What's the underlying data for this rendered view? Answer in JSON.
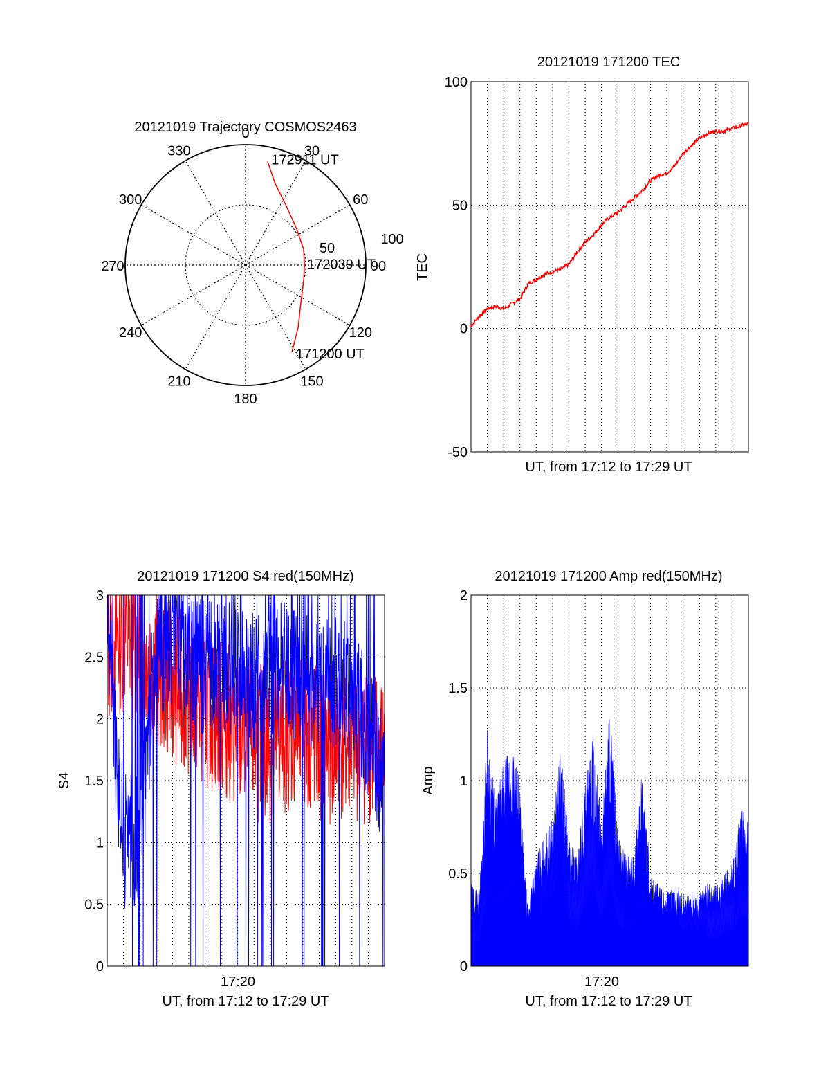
{
  "chart_data": [
    {
      "type": "polar",
      "title": "20121019 Trajectory COSMOS2463",
      "azimuth_labels": [
        "0",
        "30",
        "60",
        "90",
        "120",
        "150",
        "180",
        "210",
        "240",
        "270",
        "300",
        "330"
      ],
      "radial_labels": [
        "50",
        "100"
      ],
      "radial_range": [
        0,
        100
      ],
      "grid": true,
      "series": [
        {
          "color": "#ff0000",
          "points": [
            {
              "az": 12,
              "r": 88
            },
            {
              "az": 20,
              "r": 72
            },
            {
              "az": 34,
              "r": 60
            },
            {
              "az": 55,
              "r": 52
            },
            {
              "az": 75,
              "r": 50
            },
            {
              "az": 90,
              "r": 49
            },
            {
              "az": 105,
              "r": 50
            },
            {
              "az": 125,
              "r": 56
            },
            {
              "az": 140,
              "r": 68
            },
            {
              "az": 152,
              "r": 82
            }
          ]
        }
      ],
      "annotations": [
        {
          "text": "172911 UT",
          "az": 13,
          "r": 90
        },
        {
          "text": "172039 UT",
          "az": 89,
          "r": 50
        },
        {
          "text": "171200 UT",
          "az": 151,
          "r": 84
        }
      ]
    },
    {
      "type": "line",
      "title": "20121019 171200 TEC",
      "ylabel": "TEC",
      "xlabel": "UT, from 17:12 to 17:29 UT",
      "ylim": [
        -50,
        100
      ],
      "yticks": [
        "100",
        "50",
        "0",
        "-50"
      ],
      "xlim_minutes": [
        0,
        17
      ],
      "grid": true,
      "series": [
        {
          "color": "#ff0000",
          "x_minutes": [
            0,
            0.5,
            1,
            1.5,
            2,
            2.5,
            3,
            3.5,
            4,
            4.5,
            5,
            5.5,
            6,
            6.5,
            7,
            7.5,
            8,
            8.5,
            9,
            9.5,
            10,
            10.5,
            11,
            11.5,
            12,
            12.5,
            13,
            13.5,
            14,
            14.5,
            15,
            15.5,
            16,
            16.5,
            17
          ],
          "values": [
            1,
            5,
            8,
            9,
            8,
            10,
            12,
            18,
            20,
            22,
            23,
            24,
            26,
            31,
            35,
            38,
            42,
            45,
            47,
            50,
            53,
            56,
            60,
            62,
            63,
            66,
            71,
            74,
            77,
            79,
            80,
            80,
            81,
            82,
            83
          ]
        }
      ]
    },
    {
      "type": "line",
      "title": "20121019 171200 S4 red(150MHz)",
      "ylabel": "S4",
      "xlabel": "UT, from 17:12 to 17:29 UT",
      "xtick_label": "17:20",
      "ylim": [
        0,
        3
      ],
      "yticks": [
        "3",
        "2.5",
        "2",
        "1.5",
        "1",
        "0.5",
        "0"
      ],
      "xlim_minutes": [
        0,
        17
      ],
      "grid": true,
      "series": [
        {
          "color": "#ff0000",
          "x_minutes": [
            0,
            1,
            2,
            3,
            4,
            5,
            6,
            7,
            8,
            9,
            10,
            11,
            12,
            13,
            14,
            15,
            16,
            17
          ],
          "values": [
            2.6,
            2.7,
            2.6,
            2.4,
            2.3,
            2.2,
            2.1,
            2.0,
            1.9,
            1.8,
            1.8,
            1.9,
            1.9,
            1.8,
            1.8,
            1.8,
            1.8,
            1.7
          ]
        },
        {
          "color": "#0000ff",
          "x_minutes": [
            0,
            1,
            2,
            3,
            4,
            5,
            6,
            7,
            8,
            9,
            10,
            11,
            12,
            13,
            14,
            15,
            16,
            17
          ],
          "values": [
            2.7,
            1.0,
            1.0,
            2.6,
            2.6,
            2.5,
            2.4,
            2.4,
            2.4,
            2.3,
            2.4,
            2.4,
            2.3,
            2.3,
            2.3,
            2.2,
            1.9,
            1.5
          ]
        }
      ]
    },
    {
      "type": "area",
      "title": "20121019 171200 Amp red(150MHz)",
      "ylabel": "Amp",
      "xlabel": "UT, from 17:12 to 17:29 UT",
      "xtick_label": "17:20",
      "ylim": [
        0,
        2
      ],
      "yticks": [
        "2",
        "1.5",
        "1",
        "0.5",
        "0"
      ],
      "xlim_minutes": [
        0,
        17
      ],
      "grid": true,
      "series": [
        {
          "color": "#0000ff",
          "x_minutes": [
            0,
            0.5,
            1,
            1.5,
            2,
            2.5,
            3,
            3.5,
            4,
            4.5,
            5,
            5.5,
            6,
            6.5,
            7,
            7.5,
            8,
            8.5,
            9,
            9.5,
            10,
            10.5,
            11,
            11.5,
            12,
            12.5,
            13,
            13.5,
            14,
            14.5,
            15,
            15.5,
            16,
            16.5,
            17
          ],
          "values": [
            0.45,
            0.4,
            1.3,
            0.9,
            1.1,
            1.2,
            1.0,
            0.3,
            0.6,
            0.7,
            0.8,
            1.2,
            0.7,
            0.6,
            1.0,
            1.25,
            0.8,
            1.45,
            0.7,
            0.6,
            0.6,
            1.1,
            0.5,
            0.45,
            0.4,
            0.45,
            0.4,
            0.4,
            0.4,
            0.45,
            0.45,
            0.5,
            0.55,
            0.85,
            0.8
          ]
        }
      ]
    }
  ]
}
